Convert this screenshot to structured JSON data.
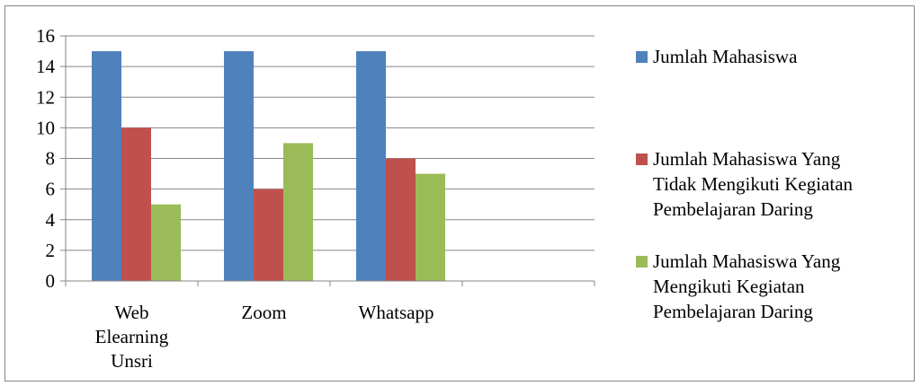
{
  "chart_data": {
    "type": "bar",
    "categories": [
      [
        "Web",
        "Elearning",
        "Unsri"
      ],
      [
        "Zoom"
      ],
      [
        "Whatsapp"
      ],
      [
        ""
      ]
    ],
    "series": [
      {
        "name": "Jumlah Mahasiswa",
        "color": "#4F81BD",
        "values": [
          15,
          15,
          15,
          null
        ],
        "legend_lines": [
          "Jumlah Mahasiswa"
        ]
      },
      {
        "name": "Jumlah Mahasiswa Yang Tidak Mengikuti Kegiatan Pembelajaran Daring",
        "color": "#C0504D",
        "values": [
          10,
          6,
          8,
          null
        ],
        "legend_lines": [
          "Jumlah Mahasiswa Yang",
          "Tidak Mengikuti Kegiatan",
          "Pembelajaran Daring"
        ]
      },
      {
        "name": "Jumlah Mahasiswa Yang Mengikuti Kegiatan Pembelajaran Daring",
        "color": "#9BBB59",
        "values": [
          5,
          9,
          7,
          null
        ],
        "legend_lines": [
          "Jumlah Mahasiswa Yang",
          "Mengikuti Kegiatan",
          "Pembelajaran Daring"
        ]
      }
    ],
    "y_ticks": [
      "0",
      "2",
      "4",
      "6",
      "8",
      "10",
      "12",
      "14",
      "16"
    ],
    "ylim": [
      0,
      16
    ],
    "grid": true,
    "legend_position": "right",
    "gridline_color": "#868686"
  }
}
